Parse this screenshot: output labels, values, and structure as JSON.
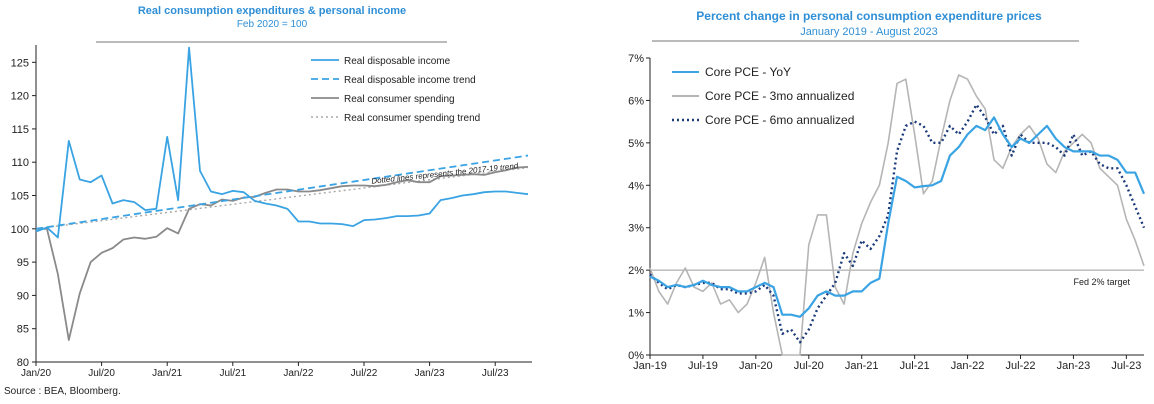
{
  "source_note": "Source : BEA, Bloomberg.",
  "chart_data": [
    {
      "type": "line",
      "title": "Real consumption expenditures & personal income",
      "subtitle": "Feb 2020 = 100",
      "x_labels": [
        "Jan/20",
        "Jul/20",
        "Jan/21",
        "Jul/21",
        "Jan/22",
        "Jul/22",
        "Jan/23",
        "Jul/23"
      ],
      "ylim": [
        80,
        127
      ],
      "yticks": [
        80,
        85,
        90,
        95,
        100,
        105,
        110,
        115,
        120,
        125
      ],
      "annotation": "Dotted lines represents the 2017-19 trend",
      "series": [
        {
          "name": "Real disposable income",
          "color": "#3aa3e3",
          "style": "solid",
          "values": [
            99.6,
            100.2,
            98.7,
            113.2,
            107.4,
            107.0,
            108.0,
            103.8,
            104.3,
            104.0,
            102.8,
            103.0,
            113.8,
            104.3,
            127.2,
            108.7,
            105.6,
            105.2,
            105.7,
            105.5,
            104.2,
            103.8,
            103.5,
            103.0,
            101.1,
            101.1,
            100.8,
            100.8,
            100.7,
            100.4,
            101.3,
            101.4,
            101.6,
            101.9,
            101.9,
            102.0,
            102.3,
            104.3,
            104.6,
            105.0,
            105.2,
            105.5,
            105.6,
            105.6,
            105.4,
            105.2
          ]
        },
        {
          "name": "Real disposable income trend",
          "color": "#3aa3e3",
          "style": "dashed",
          "values": [
            100.0,
            111.0
          ]
        },
        {
          "name": "Real consumer spending",
          "color": "#8a8a8a",
          "style": "solid",
          "values": [
            100.0,
            100.0,
            93.2,
            83.3,
            90.3,
            95.0,
            96.4,
            97.1,
            98.4,
            98.7,
            98.5,
            98.8,
            100.1,
            99.3,
            103.0,
            103.7,
            103.5,
            104.4,
            104.2,
            104.7,
            104.8,
            105.4,
            105.9,
            105.9,
            105.6,
            105.6,
            105.8,
            106.1,
            106.4,
            106.5,
            106.5,
            106.4,
            106.6,
            107.0,
            107.3,
            107.0,
            107.0,
            107.9,
            108.0,
            108.1,
            108.2,
            108.1,
            108.5,
            108.8,
            109.2,
            109.3
          ]
        },
        {
          "name": "Real consumer spending trend",
          "color": "#a8a8a8",
          "style": "dotted",
          "values": [
            100.0,
            109.2
          ]
        }
      ]
    },
    {
      "type": "line",
      "title": "Percent change in personal consumption expenditure prices",
      "subtitle": "January 2019 - August 2023",
      "x_labels": [
        "Jan-19",
        "Jul-19",
        "Jan-20",
        "Jul-20",
        "Jan-21",
        "Jul-21",
        "Jan-22",
        "Jul-22",
        "Jan-23",
        "Jul-23"
      ],
      "ylim": [
        0,
        7
      ],
      "yticks": [
        "0%",
        "1%",
        "2%",
        "3%",
        "4%",
        "5%",
        "6%",
        "7%"
      ],
      "reference_line": {
        "value": 2,
        "label": "Fed 2% target"
      },
      "series": [
        {
          "name": "Core PCE - YoY",
          "color": "#3aa3e3",
          "style": "solid",
          "values": [
            1.85,
            1.75,
            1.6,
            1.65,
            1.6,
            1.65,
            1.75,
            1.65,
            1.6,
            1.6,
            1.5,
            1.5,
            1.6,
            1.7,
            1.6,
            0.95,
            0.95,
            0.9,
            1.1,
            1.4,
            1.5,
            1.4,
            1.4,
            1.5,
            1.5,
            1.7,
            1.8,
            3.1,
            4.2,
            4.1,
            3.95,
            3.98,
            4.0,
            4.1,
            4.7,
            4.9,
            5.2,
            5.4,
            5.3,
            5.6,
            5.2,
            4.9,
            5.1,
            5.0,
            5.2,
            5.4,
            5.1,
            4.9,
            4.8,
            4.8,
            4.8,
            4.7,
            4.7,
            4.6,
            4.3,
            4.3,
            3.8
          ]
        },
        {
          "name": "Core PCE - 3mo annualized",
          "color": "#b5b5b5",
          "style": "solid",
          "values": [
            2.05,
            1.5,
            1.2,
            1.7,
            2.05,
            1.6,
            1.5,
            1.7,
            1.2,
            1.3,
            1.0,
            1.2,
            1.7,
            2.3,
            1.0,
            0.0,
            0.0,
            0.0,
            2.6,
            3.3,
            3.3,
            1.6,
            1.2,
            2.4,
            3.1,
            3.6,
            4.0,
            5.0,
            6.4,
            6.5,
            5.2,
            3.8,
            4.1,
            5.1,
            6.0,
            6.6,
            6.5,
            6.1,
            5.8,
            4.6,
            4.4,
            4.9,
            5.2,
            5.4,
            5.1,
            4.5,
            4.3,
            4.8,
            5.0,
            5.2,
            5.0,
            4.4,
            4.2,
            4.0,
            3.2,
            2.7,
            2.1
          ]
        },
        {
          "name": "Core PCE - 6mo annualized",
          "color": "#1a3a7a",
          "style": "dotted",
          "values": [
            1.9,
            1.7,
            1.55,
            1.65,
            1.6,
            1.65,
            1.7,
            1.7,
            1.55,
            1.55,
            1.45,
            1.45,
            1.5,
            1.65,
            1.4,
            0.5,
            0.6,
            0.3,
            0.6,
            1.1,
            1.4,
            1.7,
            2.4,
            2.1,
            2.7,
            2.5,
            2.8,
            3.3,
            4.8,
            5.4,
            5.5,
            5.4,
            5.0,
            5.0,
            5.4,
            5.2,
            5.5,
            5.9,
            5.6,
            5.2,
            5.4,
            4.7,
            5.2,
            5.0,
            5.0,
            5.0,
            4.9,
            4.7,
            5.2,
            4.7,
            4.8,
            4.5,
            4.4,
            4.4,
            4.0,
            3.5,
            3.0
          ]
        }
      ]
    }
  ]
}
